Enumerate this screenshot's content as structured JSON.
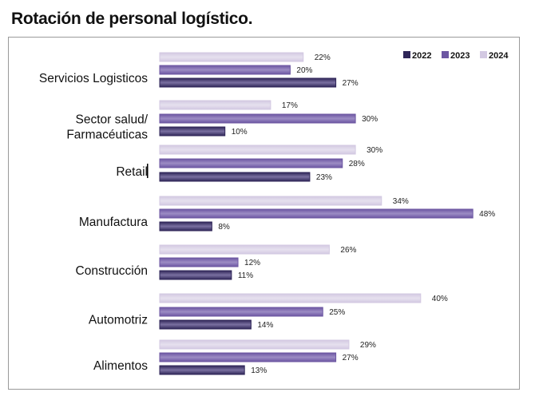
{
  "chart_data": {
    "type": "bar",
    "orientation": "horizontal",
    "title": "Rotación de personal logístico.",
    "categories": [
      [
        "Servicios Logisticos"
      ],
      [
        "Sector salud/",
        "Farmacéuticas"
      ],
      [
        "Retail"
      ],
      [
        "Manufactura"
      ],
      [
        "Construcción"
      ],
      [
        "Automotriz"
      ],
      [
        "Alimentos"
      ]
    ],
    "series": [
      {
        "name": "2024",
        "color": "#d3c9e2",
        "values": [
          22,
          17,
          30,
          34,
          26,
          40,
          29
        ]
      },
      {
        "name": "2023",
        "color": "#6c56a2",
        "values": [
          20,
          30,
          28,
          48,
          12,
          25,
          27
        ]
      },
      {
        "name": "2022",
        "color": "#2f2658",
        "values": [
          27,
          10,
          23,
          8,
          11,
          14,
          13
        ]
      }
    ],
    "legend_order": [
      "2022",
      "2023",
      "2024"
    ],
    "legend_position": "top-right",
    "value_suffix": "%",
    "xlim": [
      0,
      50
    ],
    "grid": false
  }
}
